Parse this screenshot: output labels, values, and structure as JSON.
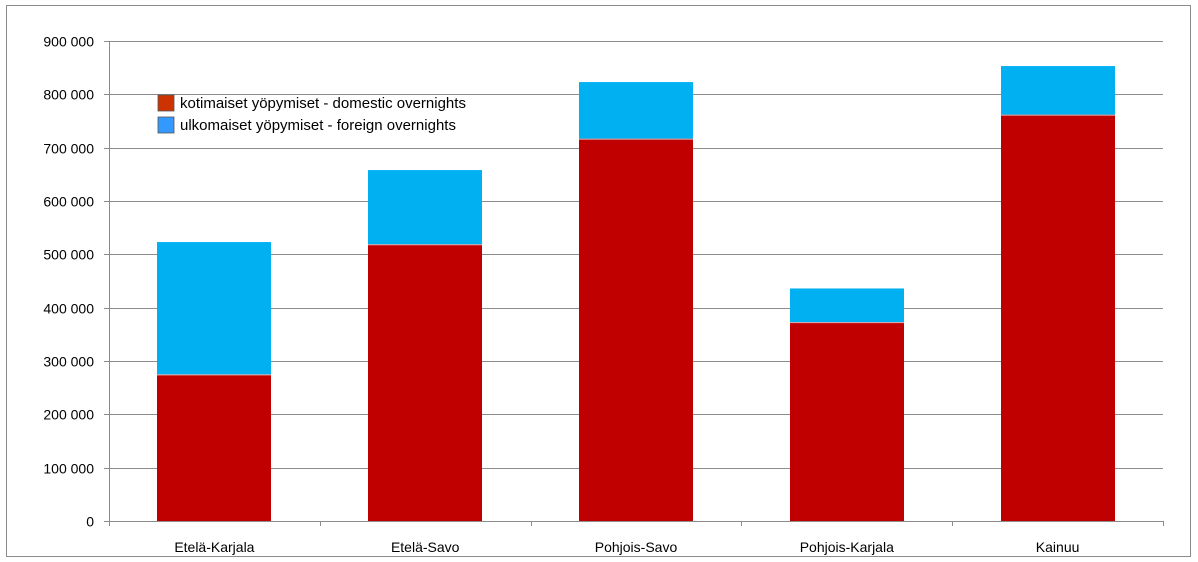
{
  "chart_data": {
    "type": "bar",
    "stacked": true,
    "categories": [
      "Etelä-Karjala",
      "Etelä-Savo",
      "Pohjois-Savo",
      "Pohjois-Karjala",
      "Kainuu"
    ],
    "series": [
      {
        "name": "kotimaiset yöpymiset - domestic overnights",
        "values": [
          275000,
          519000,
          717000,
          373000,
          762000
        ],
        "color": "#c00000"
      },
      {
        "name": "ulkomaiset yöpymiset - foreign overnights",
        "values": [
          248000,
          139000,
          106000,
          63000,
          91000
        ],
        "color": "#00b0f0"
      }
    ],
    "legend_swatch_colors": [
      "#cc3300",
      "#3399ff"
    ],
    "y_ticks": [
      0,
      100000,
      200000,
      300000,
      400000,
      500000,
      600000,
      700000,
      800000,
      900000
    ],
    "y_tick_labels": [
      "0",
      "100 000",
      "200 000",
      "300 000",
      "400 000",
      "500 000",
      "600 000",
      "700 000",
      "800 000",
      "900 000"
    ],
    "ylim": [
      0,
      900000
    ],
    "grid": true,
    "legend_position": "top-left",
    "title": "",
    "xlabel": "",
    "ylabel": ""
  }
}
